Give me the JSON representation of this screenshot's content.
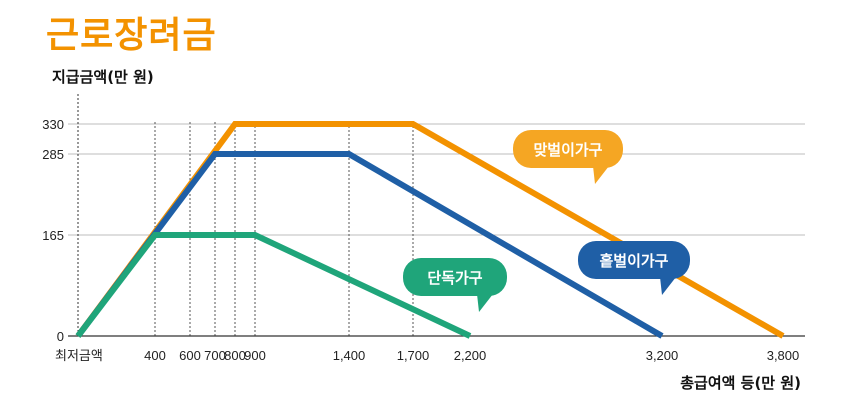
{
  "chart_data": {
    "type": "line",
    "title": "근로장려금",
    "ylabel": "지급금액(만 원)",
    "xlabel": "총급여액 등(만 원)",
    "x_ticks": [
      {
        "value": 0,
        "label": "최저금액"
      },
      {
        "value": 400,
        "label": "400"
      },
      {
        "value": 600,
        "label": "600"
      },
      {
        "value": 700,
        "label": "700"
      },
      {
        "value": 800,
        "label": "800"
      },
      {
        "value": 900,
        "label": "900"
      },
      {
        "value": 1400,
        "label": "1,400"
      },
      {
        "value": 1700,
        "label": "1,700"
      },
      {
        "value": 2200,
        "label": "2,200"
      },
      {
        "value": 3200,
        "label": "3,200"
      },
      {
        "value": 3800,
        "label": "3,800"
      }
    ],
    "y_ticks": [
      0,
      165,
      285,
      330
    ],
    "xlim": [
      0,
      3800
    ],
    "ylim": [
      0,
      330
    ],
    "series": [
      {
        "name": "맞벌이가구",
        "color": "#F39200",
        "points": [
          [
            0,
            0
          ],
          [
            800,
            330
          ],
          [
            1700,
            330
          ],
          [
            3800,
            0
          ]
        ]
      },
      {
        "name": "홑벌이가구",
        "color": "#1F5FA6",
        "points": [
          [
            0,
            0
          ],
          [
            700,
            285
          ],
          [
            1400,
            285
          ],
          [
            3200,
            0
          ]
        ]
      },
      {
        "name": "단독가구",
        "color": "#1FA57A",
        "points": [
          [
            0,
            0
          ],
          [
            400,
            165
          ],
          [
            900,
            165
          ],
          [
            2200,
            0
          ]
        ]
      }
    ]
  },
  "colors": {
    "title": "#F39200",
    "legend_dual": "#F5A623",
    "legend_single": "#1F5FA6",
    "legend_alone": "#1FA57A"
  }
}
